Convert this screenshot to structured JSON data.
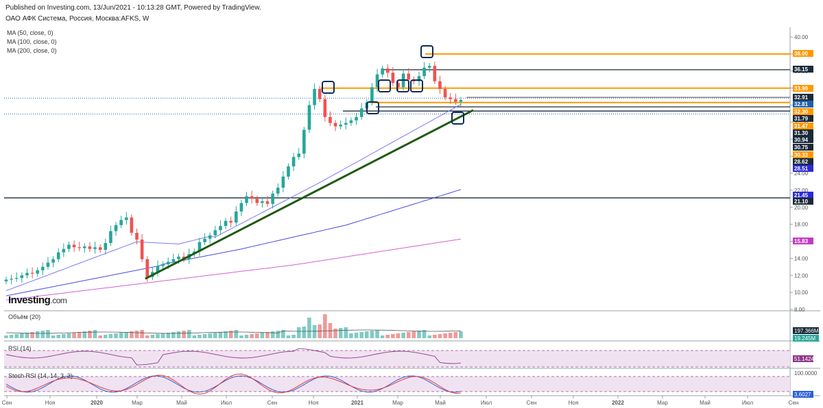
{
  "header": {
    "published": "Published on Investing.com, 13/Jun/2021 - 10:13:28 GMT, Powered by TradingView.",
    "instrument": "ОАО АФК Система, Россия, Москва:AFKS, W"
  },
  "ma_legend": [
    "MA (50, close, 0)",
    "MA (100, close, 0)",
    "MA (200, close, 0)"
  ],
  "logo": {
    "text": "Investing",
    "suffix": ".com"
  },
  "panes": {
    "volume": "Объём (20)",
    "rsi": "RSI (14)",
    "stoch": "Stoch RSI (14, 14, 3, 3)"
  },
  "colors": {
    "up": "#26a69a",
    "down": "#ef5350",
    "orange": "#ff9800",
    "dark": "#1b2a3a",
    "trend": "#1e5a12",
    "ma50": "#7b7bf0",
    "ma100": "#4a4ae0",
    "ma200": "#d45fd4",
    "navy": "#0f2a55"
  },
  "chart_data": {
    "type": "candlestick",
    "ylim": [
      8,
      40
    ],
    "y_ticks": [
      "40.00",
      "38.00",
      "36.00",
      "34.00",
      "32.00",
      "30.00",
      "28.00",
      "26.00",
      "24.00",
      "22.00",
      "20.00",
      "18.00",
      "16.00",
      "14.00",
      "12.00",
      "10.00",
      "8.00"
    ],
    "x_ticks": [
      "Сен",
      "Ноя",
      "2020",
      "Мар",
      "Май",
      "Июл",
      "Сен",
      "Ноя",
      "2021",
      "Мар",
      "Май",
      "Июл",
      "Сен",
      "Ноя",
      "2022",
      "Мар",
      "Май",
      "Июл",
      "Сен"
    ],
    "close": [
      11.5,
      11.6,
      11.7,
      12.0,
      12.3,
      12.2,
      12.6,
      13.0,
      13.5,
      13.9,
      14.7,
      15.1,
      15.6,
      15.3,
      15.2,
      15.4,
      15.1,
      15.3,
      15.0,
      15.8,
      17.2,
      17.9,
      18.5,
      18.8,
      17.0,
      16.2,
      13.9,
      11.8,
      12.4,
      13.1,
      13.3,
      13.6,
      13.9,
      14.2,
      13.9,
      14.5,
      14.8,
      15.9,
      16.3,
      16.7,
      17.3,
      17.8,
      18.4,
      18.2,
      19.5,
      20.5,
      21.3,
      21.0,
      20.5,
      20.7,
      20.4,
      21.6,
      22.3,
      23.6,
      24.8,
      25.9,
      26.3,
      29.1,
      32.0,
      33.9,
      32.7,
      30.6,
      29.9,
      29.5,
      29.7,
      29.9,
      30.2,
      30.6,
      31.6,
      32.3,
      34.1,
      35.6,
      36.3,
      35.8,
      34.6,
      34.1,
      35.7,
      35.0,
      34.8,
      35.4,
      36.4,
      36.6,
      34.8,
      33.9,
      32.9,
      32.7,
      32.4,
      32.6
    ],
    "volume_line": "197.366M",
    "volume_last": "19.245M",
    "rsi_last": "51.1424",
    "stoch_last": "3.6027",
    "stoch_top": "100.0000",
    "price_labels": [
      {
        "value": 38.0,
        "text": "38.00",
        "color": "#ff9800",
        "line": true
      },
      {
        "value": 36.15,
        "text": "36.15",
        "color": "#1b2a3a",
        "line": true
      },
      {
        "value": 33.99,
        "text": "33.99",
        "color": "#ff9800",
        "line": true
      },
      {
        "value": 32.91,
        "text": "32.91",
        "color": "#1b2a3a",
        "line": false
      },
      {
        "value": 32.81,
        "text": "32.81",
        "color": "#1f5fa8",
        "line": false
      },
      {
        "value": 32.3,
        "text": "32.30",
        "color": "#ff9800",
        "line": true
      },
      {
        "value": 31.79,
        "text": "31.79",
        "color": "#1b2a3a",
        "line": true
      },
      {
        "value": 31.47,
        "text": "31.47",
        "color": "#ff9800",
        "line": false
      },
      {
        "value": 31.3,
        "text": "31.30",
        "color": "#1b2a3a",
        "line": true
      },
      {
        "value": 30.94,
        "text": "30.94",
        "color": "#1b2a3a",
        "line": false
      },
      {
        "value": 30.75,
        "text": "30.75",
        "color": "#1b2a3a",
        "line": false
      },
      {
        "value": 30.33,
        "text": "30.33",
        "color": "#ff9800",
        "line": false
      },
      {
        "value": 28.62,
        "text": "28.62",
        "color": "#1b2a3a",
        "line": false
      },
      {
        "value": 28.51,
        "text": "28.51",
        "color": "#2b2bd6",
        "line": false
      },
      {
        "value": 21.45,
        "text": "21.45",
        "color": "#2b2bd6",
        "line": false
      },
      {
        "value": 21.1,
        "text": "21.10",
        "color": "#1b2a3a",
        "line": true
      },
      {
        "value": 15.83,
        "text": "15.83",
        "color": "#c23bc2",
        "line": false
      }
    ]
  }
}
